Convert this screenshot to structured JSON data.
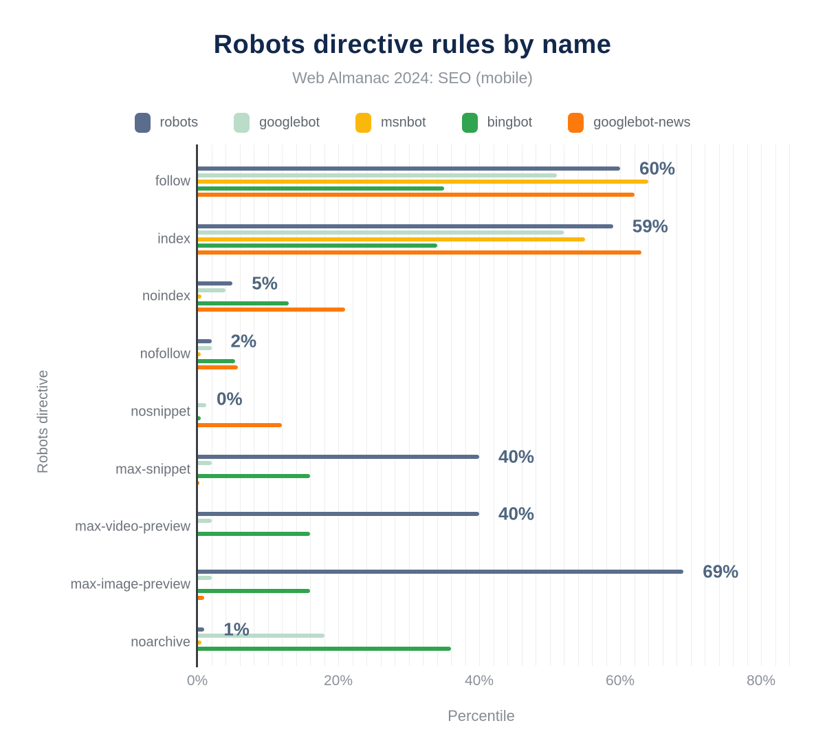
{
  "title": "Robots directive rules by name",
  "subtitle": "Web Almanac 2024: SEO (mobile)",
  "legend": [
    {
      "name": "robots",
      "color": "#5a6d8c"
    },
    {
      "name": "googlebot",
      "color": "#badcc9"
    },
    {
      "name": "msnbot",
      "color": "#fbb80c"
    },
    {
      "name": "bingbot",
      "color": "#30a44e"
    },
    {
      "name": "googlebot-news",
      "color": "#fc7a0d"
    }
  ],
  "chart_data": {
    "type": "bar",
    "orientation": "horizontal",
    "title": "Robots directive rules by name",
    "subtitle": "Web Almanac 2024: SEO (mobile)",
    "xlabel": "Percentile",
    "ylabel": "Robots directive",
    "categories": [
      "follow",
      "index",
      "noindex",
      "nofollow",
      "nosnippet",
      "max-snippet",
      "max-video-preview",
      "max-image-preview",
      "noarchive"
    ],
    "series": [
      {
        "name": "robots",
        "color": "#5a6d8c",
        "values": [
          60,
          59,
          5,
          2,
          0,
          40,
          40,
          69,
          1
        ]
      },
      {
        "name": "googlebot",
        "color": "#badcc9",
        "values": [
          51,
          52,
          4,
          2,
          1.3,
          2,
          2,
          2,
          18
        ]
      },
      {
        "name": "msnbot",
        "color": "#fbb80c",
        "values": [
          64,
          55,
          0.6,
          0.5,
          0,
          0,
          0,
          0,
          0.6
        ]
      },
      {
        "name": "bingbot",
        "color": "#30a44e",
        "values": [
          35,
          34,
          13,
          5.4,
          0.5,
          16,
          16,
          16,
          36
        ]
      },
      {
        "name": "googlebot-news",
        "color": "#fc7a0d",
        "values": [
          62,
          63,
          21,
          5.8,
          12,
          0.3,
          0,
          1,
          0
        ]
      }
    ],
    "data_labels": [
      "60%",
      "59%",
      "5%",
      "2%",
      "0%",
      "40%",
      "40%",
      "69%",
      "1%"
    ],
    "x_ticks": [
      "0%",
      "20%",
      "40%",
      "60%",
      "80%"
    ],
    "x_tick_values": [
      0,
      20,
      40,
      60,
      80
    ],
    "xlim": [
      0,
      84
    ],
    "grid_step": 2,
    "grid": true,
    "legend_position": "top"
  }
}
